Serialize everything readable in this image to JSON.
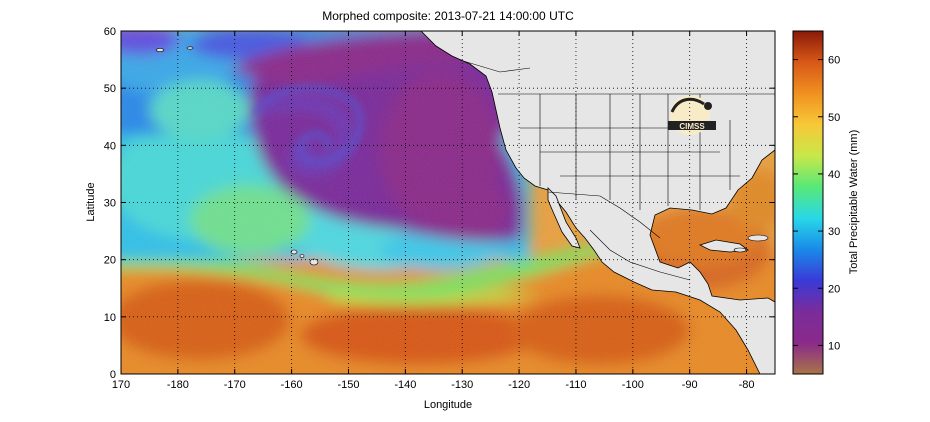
{
  "title": "Morphed composite: 2013-07-21 14:00:00 UTC",
  "xlabel": "Longitude",
  "ylabel": "Latitude",
  "x_ticks": [
    "170",
    "-180",
    "-170",
    "-160",
    "-150",
    "-140",
    "-130",
    "-120",
    "-110",
    "-100",
    "-90",
    "-80"
  ],
  "y_ticks": [
    "0",
    "10",
    "20",
    "30",
    "40",
    "50",
    "60"
  ],
  "colorbar": {
    "label": "Total Precipitable Water (mm)",
    "ticks": [
      "10",
      "20",
      "30",
      "40",
      "50",
      "60"
    ],
    "range": [
      5,
      65
    ],
    "colors": [
      "#a87448",
      "#8a2a8a",
      "#7a2c9a",
      "#3a3ad8",
      "#1a8ae8",
      "#28d8e8",
      "#58e878",
      "#c8e848",
      "#f8c838",
      "#f09020",
      "#d85818",
      "#8a1a08"
    ]
  },
  "chart_data": {
    "type": "heatmap",
    "title": "Morphed composite: 2013-07-21 14:00:00 UTC",
    "xlabel": "Longitude",
    "ylabel": "Latitude",
    "xlim": [
      170,
      285
    ],
    "ylim": [
      0,
      60
    ],
    "x_tick_labels": [
      "170",
      "-180",
      "-170",
      "-160",
      "-150",
      "-140",
      "-130",
      "-120",
      "-110",
      "-100",
      "-90",
      "-80"
    ],
    "y_tick_labels": [
      "0",
      "10",
      "20",
      "30",
      "40",
      "50",
      "60"
    ],
    "colorbar_label": "Total Precipitable Water (mm)",
    "colorbar_range_mm": [
      5,
      65
    ],
    "colorbar_ticks": [
      10,
      20,
      30,
      40,
      50,
      60
    ],
    "grid": "dotted"
  },
  "logo": {
    "text": "CIMSS"
  }
}
